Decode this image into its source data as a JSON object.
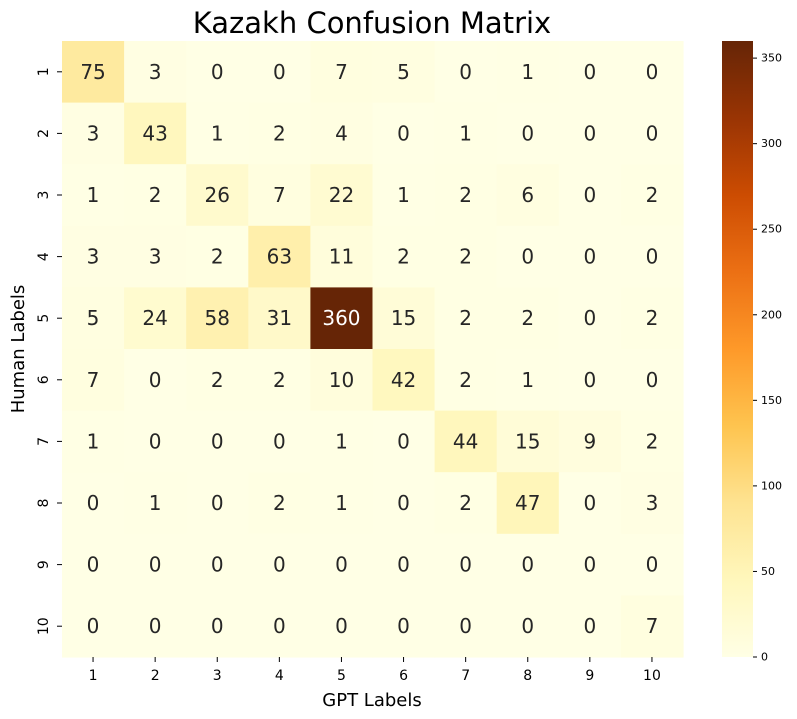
{
  "chart_data": {
    "type": "heatmap",
    "title": "Kazakh Confusion Matrix",
    "xlabel": "GPT Labels",
    "ylabel": "Human Labels",
    "x_categories": [
      "1",
      "2",
      "3",
      "4",
      "5",
      "6",
      "7",
      "8",
      "9",
      "10"
    ],
    "y_categories": [
      "1",
      "2",
      "3",
      "4",
      "5",
      "6",
      "7",
      "8",
      "9",
      "10"
    ],
    "values": [
      [
        75,
        3,
        0,
        0,
        7,
        5,
        0,
        1,
        0,
        0
      ],
      [
        3,
        43,
        1,
        2,
        4,
        0,
        1,
        0,
        0,
        0
      ],
      [
        1,
        2,
        26,
        7,
        22,
        1,
        2,
        6,
        0,
        2
      ],
      [
        3,
        3,
        2,
        63,
        11,
        2,
        2,
        0,
        0,
        0
      ],
      [
        5,
        24,
        58,
        31,
        360,
        15,
        2,
        2,
        0,
        2
      ],
      [
        7,
        0,
        2,
        2,
        10,
        42,
        2,
        1,
        0,
        0
      ],
      [
        1,
        0,
        0,
        0,
        1,
        0,
        44,
        15,
        9,
        2
      ],
      [
        0,
        1,
        0,
        2,
        1,
        0,
        2,
        47,
        0,
        3
      ],
      [
        0,
        0,
        0,
        0,
        0,
        0,
        0,
        0,
        0,
        0
      ],
      [
        0,
        0,
        0,
        0,
        0,
        0,
        0,
        0,
        0,
        7
      ]
    ],
    "colorbar": {
      "colormap": "YlOrBr",
      "range": [
        0,
        360
      ],
      "ticks": [
        0,
        50,
        100,
        150,
        200,
        250,
        300,
        350
      ]
    },
    "grid": false,
    "annotations": "cell values shown",
    "colors": {
      "low": "#ffffe5",
      "high": "#662506",
      "text_dark": "#262626",
      "text_light": "#ffffff"
    }
  }
}
